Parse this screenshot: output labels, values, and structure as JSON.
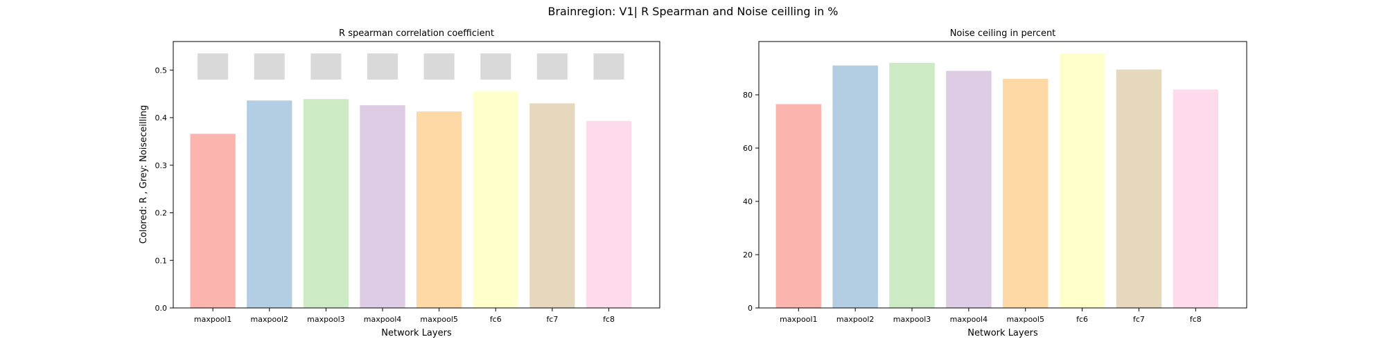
{
  "figure": {
    "title": "Brainregion: V1| R Spearman and Noise ceilling in %"
  },
  "chart_data": [
    {
      "type": "bar",
      "title": "R spearman correlation coefficient",
      "xlabel": "Network Layers",
      "ylabel": "Colored: R , Grey: Noiseceilling",
      "categories": [
        "maxpool1",
        "maxpool2",
        "maxpool3",
        "maxpool4",
        "maxpool5",
        "fc6",
        "fc7",
        "fc8"
      ],
      "series": [
        {
          "name": "R",
          "values": [
            0.366,
            0.436,
            0.439,
            0.426,
            0.413,
            0.455,
            0.43,
            0.393
          ]
        }
      ],
      "noise_ceiling_range": [
        0.48,
        0.535
      ],
      "ylim": [
        0,
        0.56
      ],
      "yticks": [
        0.0,
        0.1,
        0.2,
        0.3,
        0.4,
        0.5
      ],
      "ytick_labels": [
        "0.0",
        "0.1",
        "0.2",
        "0.3",
        "0.4",
        "0.5"
      ],
      "grid": false
    },
    {
      "type": "bar",
      "title": "Noise ceiling in percent",
      "xlabel": "Network Layers",
      "ylabel": "",
      "categories": [
        "maxpool1",
        "maxpool2",
        "maxpool3",
        "maxpool4",
        "maxpool5",
        "fc6",
        "fc7",
        "fc8"
      ],
      "series": [
        {
          "values": [
            76.5,
            91.0,
            92.0,
            89.0,
            86.0,
            95.5,
            89.5,
            82.0
          ]
        }
      ],
      "ylim": [
        0,
        100
      ],
      "yticks": [
        0,
        20,
        40,
        60,
        80
      ],
      "ytick_labels": [
        "0",
        "20",
        "40",
        "60",
        "80"
      ],
      "grid": false
    }
  ],
  "colors": {
    "bars": [
      "#fbb4ae",
      "#b3cde3",
      "#ccebc5",
      "#decbe4",
      "#fed9a6",
      "#ffffcc",
      "#e5d8bd",
      "#fddaec"
    ],
    "noise_ceiling": "#d9d9d9"
  }
}
